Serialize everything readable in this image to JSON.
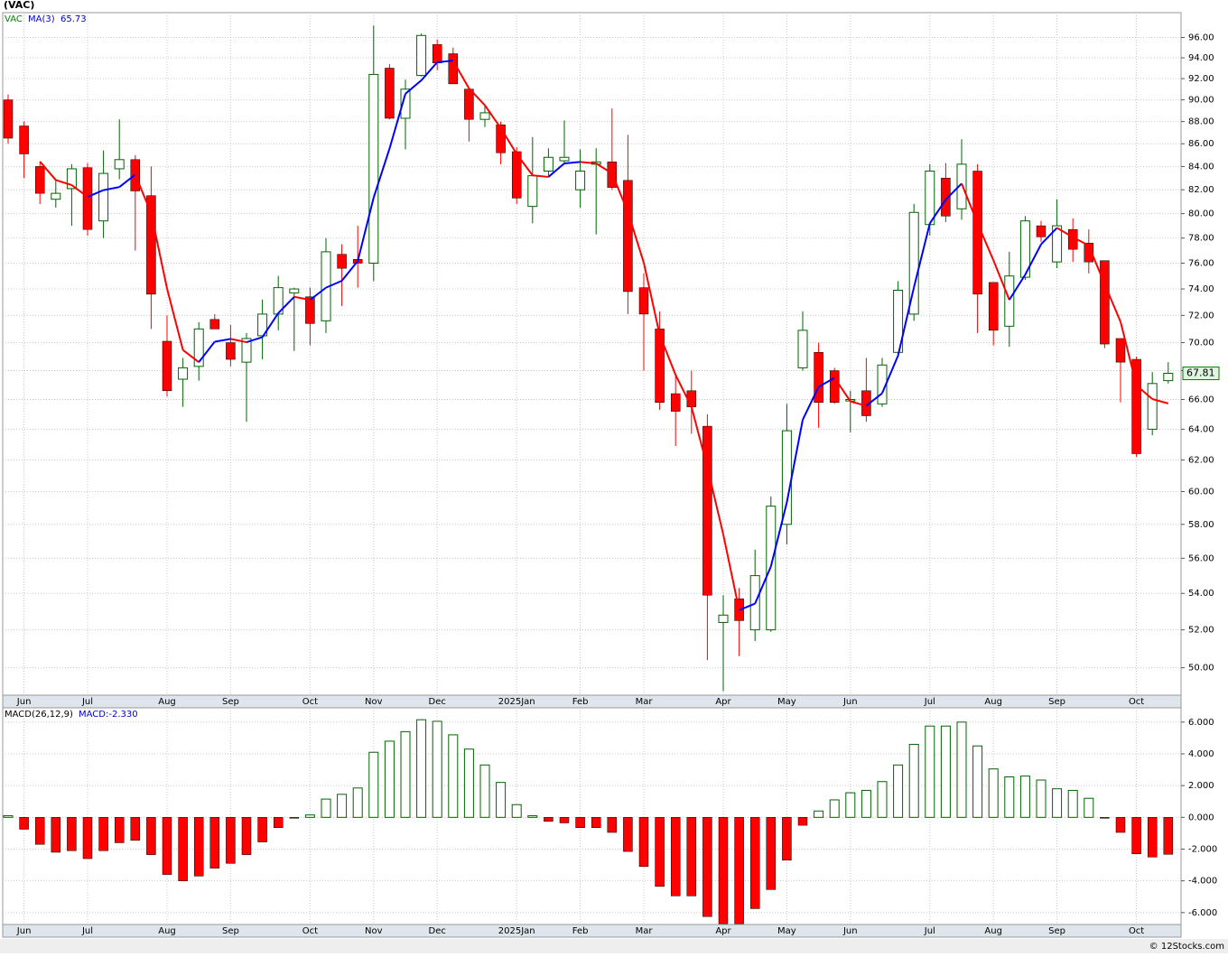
{
  "chart_data": [
    {
      "type": "candlestick",
      "title": "(VAC)",
      "log_scale": true,
      "grid": true,
      "categories": [
        null,
        "Jun",
        null,
        null,
        null,
        "Jul",
        null,
        null,
        null,
        null,
        "Aug",
        null,
        null,
        null,
        "Sep",
        null,
        null,
        null,
        null,
        "Oct",
        null,
        null,
        null,
        "Nov",
        null,
        null,
        null,
        "Dec",
        null,
        null,
        null,
        null,
        "2025Jan",
        null,
        null,
        null,
        "Feb",
        null,
        null,
        null,
        "Mar",
        null,
        null,
        null,
        null,
        "Apr",
        null,
        null,
        null,
        "May",
        null,
        null,
        null,
        "Jun",
        null,
        null,
        null,
        null,
        "Jul",
        null,
        null,
        null,
        "Aug",
        null,
        null,
        null,
        "Sep",
        null,
        null,
        null,
        null,
        "Oct",
        null,
        null
      ],
      "series": [
        {
          "name": "VAC",
          "color": "#008000",
          "up_color": "#006400",
          "down_color": "#ff0000",
          "open": [
            90,
            87.6,
            84,
            81.2,
            82.1,
            83.9,
            79.4,
            83.8,
            84.6,
            81.5,
            70.1,
            67.4,
            68.3,
            71.7,
            70,
            68.6,
            70.5,
            72.1,
            73.7,
            73.4,
            71.6,
            76.7,
            76.3,
            76,
            93,
            88.3,
            92.3,
            95.3,
            94.4,
            91,
            88.2,
            87.7,
            85.3,
            80.6,
            83.6,
            84.5,
            82,
            84.2,
            84.4,
            82.8,
            74.1,
            71,
            66.4,
            66.6,
            64.2,
            52.4,
            53.7,
            52,
            52,
            58,
            68.2,
            69.3,
            68,
            65.9,
            66.6,
            65.7,
            69.3,
            72.1,
            79.1,
            83,
            80.4,
            83.6,
            74.5,
            71.2,
            74.9,
            79,
            76.1,
            78.7,
            77.6,
            76.2,
            70.3,
            68.8,
            64,
            67.3
          ],
          "high": [
            90.5,
            88,
            84.4,
            82.9,
            84.2,
            84.3,
            85.4,
            88.2,
            85,
            84,
            72,
            68.9,
            71.5,
            72.1,
            71.3,
            70.7,
            73.2,
            75,
            74.1,
            74.1,
            78,
            77.5,
            79,
            97.2,
            93.4,
            91.9,
            96.4,
            95.8,
            95,
            91,
            89.5,
            88,
            85.7,
            86.6,
            85.6,
            88.1,
            85.5,
            85.6,
            89.2,
            86.8,
            75.2,
            72.3,
            67.8,
            68,
            65,
            53.9,
            54.3,
            56.5,
            59.7,
            65.7,
            72.3,
            70,
            68.2,
            66.6,
            68.9,
            68.9,
            74.6,
            80.8,
            84.2,
            84.3,
            86.4,
            84.2,
            74.5,
            76.9,
            79.8,
            79.4,
            81.2,
            79.6,
            78.7,
            76.2,
            70.3,
            69,
            67.9,
            68.6
          ],
          "low": [
            86,
            83,
            80.8,
            80.5,
            79,
            78.2,
            78,
            82.9,
            77,
            71,
            66.2,
            65.5,
            67.3,
            71,
            68.3,
            64.5,
            68.8,
            70.9,
            69.4,
            69.8,
            70.7,
            72.7,
            74.1,
            74.6,
            88.2,
            85.5,
            92.2,
            92.8,
            91.5,
            86.2,
            87.5,
            84.2,
            80.8,
            79.2,
            83.2,
            84.3,
            80.5,
            78.3,
            82,
            72.1,
            68,
            65.3,
            62.9,
            63.7,
            50.4,
            48.8,
            50.6,
            51.4,
            51.9,
            56.8,
            68,
            64.1,
            65.7,
            63.8,
            64.5,
            65.5,
            69.2,
            71.6,
            78.2,
            79.3,
            79.5,
            70.7,
            69.8,
            69.7,
            74.7,
            77.7,
            75.6,
            76.1,
            75.2,
            69.6,
            65.8,
            62.2,
            63.6,
            67.1
          ],
          "close": [
            86.5,
            85.1,
            81.7,
            81.7,
            83.8,
            78.7,
            83.4,
            84.6,
            81.9,
            73.6,
            66.6,
            68.2,
            71,
            71,
            68.8,
            70.3,
            72.1,
            74.1,
            74,
            71.4,
            76.9,
            75.6,
            76,
            92.4,
            88.3,
            91,
            96.2,
            93.5,
            91.5,
            88.2,
            88.8,
            85.2,
            81.3,
            83.2,
            84.8,
            84.8,
            83.6,
            84.4,
            82.2,
            73.8,
            72.1,
            65.8,
            65.2,
            65.5,
            53.9,
            52.8,
            52.5,
            55,
            59.1,
            63.9,
            70.9,
            65.8,
            65.8,
            66,
            64.9,
            68.4,
            73.9,
            80.1,
            83.6,
            79.8,
            84.2,
            73.6,
            70.9,
            75,
            79.4,
            78.1,
            79,
            77.1,
            76.1,
            69.9,
            68.6,
            62.4,
            67.1,
            67.81
          ]
        },
        {
          "name": "MA(3)",
          "type": "line",
          "color": "#0000cc",
          "up_color": "#0000ff",
          "down_color": "#ff0000",
          "values": [
            null,
            null,
            84.43,
            82.83,
            82.4,
            81.4,
            81.97,
            82.23,
            83.3,
            80.03,
            74.03,
            69.47,
            68.6,
            70.07,
            70.27,
            70.03,
            70.4,
            72.17,
            73.4,
            73.17,
            74.1,
            74.63,
            76.17,
            81.33,
            85.57,
            90.57,
            91.83,
            93.57,
            93.73,
            91.07,
            89.5,
            87.4,
            85.1,
            83.23,
            83.1,
            84.27,
            84.4,
            84.27,
            83.4,
            80.13,
            76.03,
            70.57,
            67.7,
            65.5,
            61.53,
            57.4,
            53.07,
            53.43,
            55.53,
            59.33,
            64.63,
            66.87,
            67.5,
            65.87,
            65.57,
            66.43,
            69.07,
            74.13,
            79.2,
            81.17,
            82.53,
            79.2,
            76.23,
            73.17,
            75.1,
            77.5,
            78.83,
            78.07,
            77.4,
            74.37,
            71.53,
            66.97,
            66.03,
            65.73
          ]
        }
      ],
      "ylim": [
        48.6,
        98.5
      ],
      "yticks": [
        {
          "value": 50,
          "label": "50.00"
        },
        {
          "value": 52,
          "label": "52.00"
        },
        {
          "value": 54,
          "label": "54.00"
        },
        {
          "value": 56,
          "label": "56.00"
        },
        {
          "value": 58,
          "label": "58.00"
        },
        {
          "value": 60,
          "label": "60.00"
        },
        {
          "value": 62,
          "label": "62.00"
        },
        {
          "value": 64,
          "label": "64.00"
        },
        {
          "value": 66,
          "label": "66.00"
        },
        {
          "value": 68,
          "label": "68.00"
        },
        {
          "value": 70,
          "label": "70.00"
        },
        {
          "value": 72,
          "label": "72.00"
        },
        {
          "value": 74,
          "label": "74.00"
        },
        {
          "value": 76,
          "label": "76.00"
        },
        {
          "value": 78,
          "label": "78.00"
        },
        {
          "value": 80,
          "label": "80.00"
        },
        {
          "value": 82,
          "label": "82.00"
        },
        {
          "value": 84,
          "label": "84.00"
        },
        {
          "value": 86,
          "label": "86.00"
        },
        {
          "value": 88,
          "label": "88.00"
        },
        {
          "value": 90,
          "label": "90.00"
        },
        {
          "value": 92,
          "label": "92.00"
        },
        {
          "value": 94,
          "label": "94.00"
        },
        {
          "value": 96,
          "label": "96.00"
        }
      ]
    },
    {
      "type": "bar",
      "name": "MACD(26,12,9)",
      "last_value_label": "MACD:-2.330",
      "grid": true,
      "up_color": "#006400",
      "down_color": "#ff0000",
      "values": [
        0.1,
        -0.75,
        -1.7,
        -2.2,
        -2.1,
        -2.6,
        -2.1,
        -1.6,
        -1.45,
        -2.35,
        -3.6,
        -4.0,
        -3.7,
        -3.2,
        -2.9,
        -2.35,
        -1.55,
        -0.65,
        -0.05,
        0.15,
        1.15,
        1.45,
        1.85,
        4.1,
        4.8,
        5.4,
        6.15,
        6.05,
        5.2,
        4.3,
        3.3,
        2.2,
        0.8,
        0.1,
        -0.25,
        -0.35,
        -0.65,
        -0.65,
        -0.95,
        -2.15,
        -3.1,
        -4.35,
        -4.95,
        -4.95,
        -6.25,
        -6.7,
        -6.7,
        -5.75,
        -4.55,
        -2.7,
        -0.5,
        0.4,
        1.1,
        1.55,
        1.7,
        2.25,
        3.3,
        4.6,
        5.75,
        5.75,
        6.0,
        4.5,
        3.05,
        2.55,
        2.6,
        2.35,
        1.8,
        1.7,
        1.2,
        -0.02,
        -0.95,
        -2.3,
        -2.5,
        -2.33
      ],
      "ylim": [
        -6.75,
        6.9
      ],
      "yticks": [
        {
          "value": 6,
          "label": "6.000"
        },
        {
          "value": 4,
          "label": "4.000"
        },
        {
          "value": 2,
          "label": "2.000"
        },
        {
          "value": 0,
          "label": "0.000"
        },
        {
          "value": -2,
          "label": "-2.000"
        },
        {
          "value": -4,
          "label": "-4.000"
        },
        {
          "value": -6,
          "label": "-6.000"
        }
      ]
    }
  ],
  "footer": "© 12Stocks.com"
}
